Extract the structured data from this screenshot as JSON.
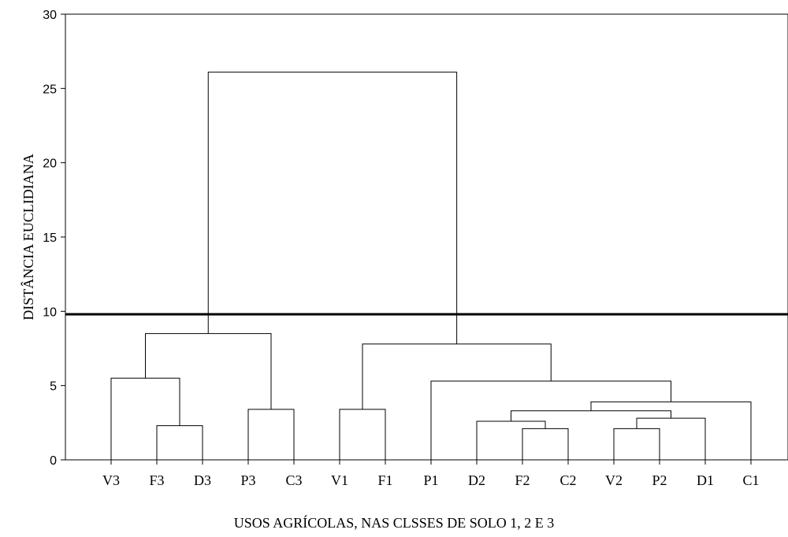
{
  "chart_data": {
    "type": "dendrogram",
    "xlabel": "USOS AGRÍCOLAS, NAS CLSSES DE SOLO 1, 2 E 3",
    "ylabel": "DISTÂNCIA EUCLIDIANA",
    "ylim": [
      0,
      30
    ],
    "yticks": [
      0,
      5,
      10,
      15,
      20,
      25,
      30
    ],
    "leaves": [
      "V3",
      "F3",
      "D3",
      "P3",
      "C3",
      "V1",
      "F1",
      "P1",
      "D2",
      "F2",
      "C2",
      "V2",
      "P2",
      "D1",
      "C1"
    ],
    "merges": [
      {
        "left": "F3",
        "right": "D3",
        "height": 2.3
      },
      {
        "left": "V3",
        "right": "F3+D3",
        "height": 5.5
      },
      {
        "left": "P3",
        "right": "C3",
        "height": 3.4
      },
      {
        "left": "V3+F3+D3",
        "right": "P3+C3",
        "height": 8.5
      },
      {
        "left": "V1",
        "right": "F1",
        "height": 3.4
      },
      {
        "left": "F2",
        "right": "C2",
        "height": 2.1
      },
      {
        "left": "D2",
        "right": "F2+C2",
        "height": 2.6
      },
      {
        "left": "V2",
        "right": "P2",
        "height": 2.1
      },
      {
        "left": "V2+P2",
        "right": "D1",
        "height": 2.8
      },
      {
        "left": "D2+F2+C2",
        "right": "V2+P2+D1",
        "height": 3.3
      },
      {
        "left": "D2+F2+C2+V2+P2+D1",
        "right": "C1",
        "height": 3.9
      },
      {
        "left": "P1",
        "right": "D2+F2+C2+V2+P2+D1+C1",
        "height": 5.3
      },
      {
        "left": "V1+F1",
        "right": "P1+D2+F2+C2+V2+P2+D1+C1",
        "height": 7.8
      },
      {
        "left": "V3+F3+D3+P3+C3",
        "right": "V1+F1+P1+D2+F2+C2+V2+P2+D1+C1",
        "height": 26.1
      }
    ],
    "cut_line": 9.8,
    "grid": false
  }
}
